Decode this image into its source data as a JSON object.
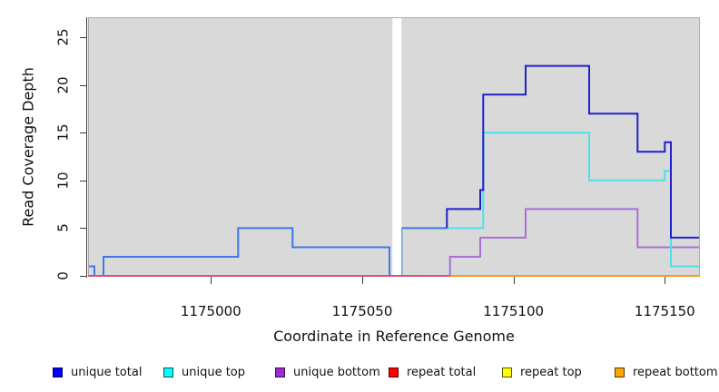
{
  "figure": {
    "background": "#ffffff",
    "panel_background": "#d9d9d9",
    "panel_border": "#ababab",
    "axis_color": "#3a3a3a",
    "gap_color": "#ffffff"
  },
  "chart_data": {
    "type": "line",
    "subtype": "step-coverage-plot",
    "title": "",
    "xlabel": "Coordinate in Reference Genome",
    "ylabel": "Read Coverage Depth",
    "xlim": [
      1174959.4,
      1175161.6
    ],
    "ylim": [
      0,
      27.1
    ],
    "x_ticks": [
      1175000,
      1175050,
      1175100,
      1175150
    ],
    "y_ticks": [
      0,
      5,
      10,
      15,
      20,
      25
    ],
    "grid": "off",
    "legend_position": "bottom",
    "gap_region": {
      "from": 1175060,
      "to": 1175063
    },
    "series": [
      {
        "name": "unique total",
        "legend_color": "#0000ff",
        "line_color": "#2020cd",
        "line_color_left": "#4079e6",
        "color_split_x": 1175078,
        "steps": [
          [
            1174959.4,
            1
          ],
          [
            1174961.5,
            0
          ],
          [
            1174964.5,
            2
          ],
          [
            1175009,
            5
          ],
          [
            1175027,
            3
          ],
          [
            1175059,
            0
          ],
          [
            1175063,
            5
          ],
          [
            1175078,
            7
          ],
          [
            1175089,
            9
          ],
          [
            1175090,
            19
          ],
          [
            1175104,
            22
          ],
          [
            1175125,
            17
          ],
          [
            1175141,
            13
          ],
          [
            1175150,
            14
          ],
          [
            1175152,
            4
          ],
          [
            1175161.6,
            4
          ]
        ]
      },
      {
        "name": "unique top",
        "legend_color": "#00ffff",
        "line_color": "#4ee1e6",
        "steps": [
          [
            1174959.4,
            1
          ],
          [
            1174961.5,
            0
          ],
          [
            1174964.5,
            2
          ],
          [
            1175009,
            5
          ],
          [
            1175027,
            3
          ],
          [
            1175059,
            0
          ],
          [
            1175063,
            5
          ],
          [
            1175090,
            15
          ],
          [
            1175125,
            10
          ],
          [
            1175150,
            11
          ],
          [
            1175152,
            1
          ],
          [
            1175161.6,
            1
          ]
        ]
      },
      {
        "name": "unique bottom",
        "legend_color": "#9d2bd4",
        "line_color": "#ab6fd6",
        "steps": [
          [
            1174959.4,
            0
          ],
          [
            1175079,
            2
          ],
          [
            1175089,
            4
          ],
          [
            1175104,
            7
          ],
          [
            1175141,
            3
          ],
          [
            1175161.6,
            3
          ]
        ]
      },
      {
        "name": "repeat total",
        "legend_color": "#ff0000",
        "line_color": "#d94f75",
        "steps": [
          [
            1174959.4,
            0
          ],
          [
            1175161.6,
            0
          ]
        ]
      },
      {
        "name": "repeat top",
        "legend_color": "#ffff00",
        "line_color": "#f2e646",
        "steps": [
          [
            1174959.4,
            0
          ],
          [
            1175161.6,
            0
          ]
        ]
      },
      {
        "name": "repeat bottom",
        "legend_color": "#ffa500",
        "line_color": "#f89b20",
        "steps": [
          [
            1175079,
            0
          ],
          [
            1175161.6,
            0
          ]
        ]
      }
    ],
    "draw_order": [
      "repeat top",
      "unique bottom",
      "unique top",
      "unique total"
    ],
    "zero_draw_order_after_gap": [
      "repeat total",
      "repeat bottom"
    ]
  }
}
